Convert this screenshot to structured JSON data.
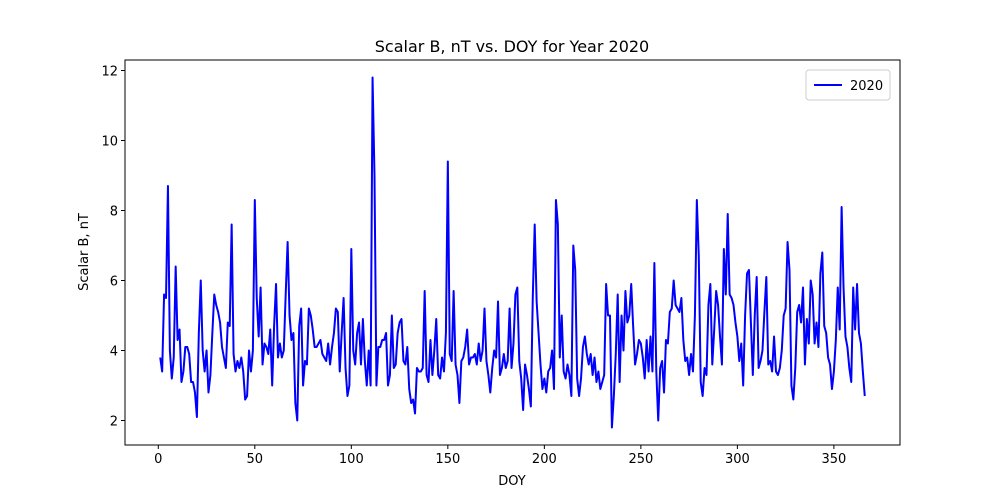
{
  "chart_data": {
    "type": "line",
    "title": "Scalar B, nT  vs. DOY for Year 2020",
    "x_label": "DOY",
    "y_label": "Scalar B, nT",
    "xlim": [
      -17.25,
      384.25
    ],
    "ylim": [
      1.3,
      12.3
    ],
    "xticks": [
      0,
      50,
      100,
      150,
      200,
      250,
      300,
      350
    ],
    "yticks": [
      2,
      4,
      6,
      8,
      10,
      12
    ],
    "legend": "upper right",
    "x": [
      1,
      2,
      3,
      4,
      5,
      6,
      7,
      8,
      9,
      10,
      11,
      12,
      13,
      14,
      15,
      16,
      17,
      18,
      19,
      20,
      21,
      22,
      23,
      24,
      25,
      26,
      27,
      28,
      29,
      30,
      31,
      32,
      33,
      34,
      35,
      36,
      37,
      38,
      39,
      40,
      41,
      42,
      43,
      44,
      45,
      46,
      47,
      48,
      49,
      50,
      51,
      52,
      53,
      54,
      55,
      56,
      57,
      58,
      59,
      60,
      61,
      62,
      63,
      64,
      65,
      66,
      67,
      68,
      69,
      70,
      71,
      72,
      73,
      74,
      75,
      76,
      77,
      78,
      79,
      80,
      81,
      82,
      83,
      84,
      85,
      86,
      87,
      88,
      89,
      90,
      91,
      92,
      93,
      94,
      95,
      96,
      97,
      98,
      99,
      100,
      101,
      102,
      103,
      104,
      105,
      106,
      107,
      108,
      109,
      110,
      111,
      112,
      113,
      114,
      115,
      116,
      117,
      118,
      119,
      120,
      121,
      122,
      123,
      124,
      125,
      126,
      127,
      128,
      129,
      130,
      131,
      132,
      133,
      134,
      135,
      136,
      137,
      138,
      139,
      140,
      141,
      142,
      143,
      144,
      145,
      146,
      147,
      148,
      149,
      150,
      151,
      152,
      153,
      154,
      155,
      156,
      157,
      158,
      159,
      160,
      161,
      162,
      163,
      164,
      165,
      166,
      167,
      168,
      169,
      170,
      171,
      172,
      173,
      174,
      175,
      176,
      177,
      178,
      179,
      180,
      181,
      182,
      183,
      184,
      185,
      186,
      187,
      188,
      189,
      190,
      191,
      192,
      193,
      194,
      195,
      196,
      197,
      198,
      199,
      200,
      201,
      202,
      203,
      204,
      205,
      206,
      207,
      208,
      209,
      210,
      211,
      212,
      213,
      214,
      215,
      216,
      217,
      218,
      219,
      220,
      221,
      222,
      223,
      224,
      225,
      226,
      227,
      228,
      229,
      230,
      231,
      232,
      233,
      234,
      235,
      236,
      237,
      238,
      239,
      240,
      241,
      242,
      243,
      244,
      245,
      246,
      247,
      248,
      249,
      250,
      251,
      252,
      253,
      254,
      255,
      256,
      257,
      258,
      259,
      260,
      261,
      262,
      263,
      264,
      265,
      266,
      267,
      268,
      269,
      270,
      271,
      272,
      273,
      274,
      275,
      276,
      277,
      278,
      279,
      280,
      281,
      282,
      283,
      284,
      285,
      286,
      287,
      288,
      289,
      290,
      291,
      292,
      293,
      294,
      295,
      296,
      297,
      298,
      299,
      300,
      301,
      302,
      303,
      304,
      305,
      306,
      307,
      308,
      309,
      310,
      311,
      312,
      313,
      314,
      315,
      316,
      317,
      318,
      319,
      320,
      321,
      322,
      323,
      324,
      325,
      326,
      327,
      328,
      329,
      330,
      331,
      332,
      333,
      334,
      335,
      336,
      337,
      338,
      339,
      340,
      341,
      342,
      343,
      344,
      345,
      346,
      347,
      348,
      349,
      350,
      351,
      352,
      353,
      354,
      355,
      356,
      357,
      358,
      359,
      360,
      361,
      362,
      363,
      364,
      365,
      366
    ],
    "series": [
      {
        "name": "2020",
        "color": "#0000ff",
        "values": [
          3.8,
          3.4,
          5.6,
          5.5,
          8.7,
          4.0,
          3.2,
          3.8,
          6.4,
          4.3,
          4.6,
          3.1,
          3.4,
          4.1,
          4.1,
          3.9,
          3.1,
          3.1,
          2.8,
          2.1,
          4.5,
          6.0,
          4.0,
          3.4,
          4.0,
          2.8,
          3.3,
          4.5,
          5.6,
          5.3,
          5.1,
          4.8,
          4.1,
          3.8,
          3.5,
          4.8,
          4.7,
          7.6,
          3.9,
          3.4,
          3.7,
          3.5,
          3.8,
          3.4,
          2.6,
          2.7,
          4.0,
          3.4,
          4.0,
          8.3,
          5.5,
          4.4,
          5.8,
          3.6,
          4.2,
          4.1,
          3.9,
          4.6,
          3.0,
          4.7,
          5.9,
          3.8,
          4.2,
          3.8,
          4.0,
          5.6,
          7.1,
          5.0,
          4.3,
          4.5,
          2.5,
          2.0,
          4.7,
          5.2,
          3.0,
          3.7,
          3.6,
          5.2,
          5.0,
          4.6,
          4.1,
          4.1,
          4.2,
          4.3,
          3.9,
          3.8,
          3.7,
          4.2,
          3.6,
          4.1,
          4.5,
          5.2,
          5.1,
          3.4,
          4.5,
          5.5,
          3.5,
          2.7,
          3.0,
          6.9,
          4.0,
          3.6,
          4.5,
          4.8,
          3.6,
          4.9,
          3.7,
          3.0,
          4.0,
          3.0,
          11.8,
          9.0,
          3.0,
          4.1,
          4.1,
          4.3,
          4.3,
          4.5,
          3.0,
          3.3,
          5.0,
          3.5,
          3.6,
          4.5,
          4.8,
          4.9,
          3.7,
          3.6,
          4.1,
          2.9,
          2.5,
          2.6,
          2.2,
          3.5,
          3.4,
          3.4,
          3.5,
          5.7,
          3.3,
          3.1,
          4.3,
          3.3,
          4.0,
          4.9,
          3.3,
          3.2,
          3.8,
          3.4,
          4.5,
          9.4,
          3.9,
          3.7,
          5.7,
          3.6,
          3.3,
          2.5,
          3.7,
          3.8,
          4.1,
          4.6,
          3.6,
          3.8,
          3.8,
          3.9,
          3.6,
          4.2,
          3.7,
          4.0,
          5.2,
          3.7,
          3.3,
          2.8,
          3.5,
          4.0,
          3.8,
          5.4,
          3.3,
          3.5,
          3.9,
          3.5,
          3.7,
          5.2,
          3.5,
          4.2,
          5.6,
          5.8,
          3.7,
          3.2,
          2.3,
          3.6,
          3.3,
          2.9,
          2.4,
          5.5,
          7.6,
          5.4,
          4.5,
          3.6,
          2.9,
          3.2,
          2.8,
          3.4,
          3.5,
          4.0,
          2.9,
          8.3,
          7.6,
          3.8,
          5.0,
          3.4,
          3.2,
          3.6,
          3.3,
          2.7,
          7.0,
          6.3,
          3.2,
          2.7,
          3.2,
          4.1,
          4.4,
          3.9,
          3.6,
          3.9,
          3.3,
          3.8,
          3.1,
          3.4,
          2.9,
          3.1,
          3.3,
          5.9,
          5.0,
          5.0,
          1.8,
          2.7,
          3.9,
          5.6,
          3.1,
          5.0,
          4.0,
          5.7,
          4.8,
          5.0,
          5.9,
          4.7,
          3.6,
          3.9,
          4.3,
          4.2,
          3.8,
          3.2,
          4.3,
          3.4,
          4.4,
          3.4,
          6.5,
          3.4,
          2.0,
          3.5,
          3.7,
          2.8,
          4.3,
          4.2,
          5.1,
          5.2,
          6.0,
          5.3,
          5.2,
          5.1,
          5.5,
          4.3,
          3.7,
          3.8,
          3.3,
          3.9,
          3.4,
          5.0,
          8.3,
          6.7,
          3.1,
          2.7,
          3.5,
          3.3,
          5.3,
          5.9,
          3.6,
          4.6,
          5.7,
          5.3,
          4.4,
          3.6,
          6.9,
          5.6,
          7.9,
          5.6,
          5.5,
          5.3,
          4.8,
          4.4,
          3.7,
          4.2,
          3.0,
          5.0,
          6.2,
          6.3,
          4.8,
          3.3,
          5.0,
          6.1,
          3.5,
          3.7,
          4.0,
          5.1,
          6.1,
          3.6,
          3.7,
          3.4,
          4.4,
          3.4,
          3.3,
          3.5,
          4.0,
          5.0,
          5.2,
          7.1,
          6.3,
          3.0,
          2.6,
          3.5,
          5.1,
          5.3,
          4.8,
          5.8,
          3.6,
          4.9,
          4.2,
          6.0,
          5.6,
          4.2,
          4.8,
          4.1,
          6.2,
          6.8,
          4.7,
          4.5,
          3.8,
          3.6,
          2.9,
          3.4,
          4.3,
          5.8,
          4.6,
          8.1,
          5.8,
          4.4,
          4.1,
          3.5,
          3.1,
          5.8,
          4.6,
          5.9,
          4.5,
          4.2,
          3.4,
          2.7
        ]
      }
    ]
  }
}
